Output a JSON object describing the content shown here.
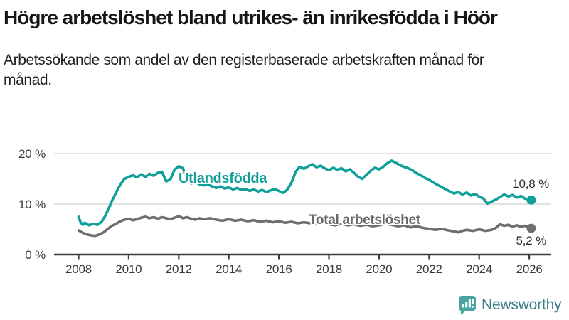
{
  "header": {
    "title": "Högre arbetslöshet bland utrikes- än inrikesfödda i Höör",
    "subtitle": "Arbetssökande som andel av den registerbaserade arbetskraften månad för månad."
  },
  "branding": {
    "name": "Newsworthy",
    "icon": "newsworthy-speech-bubble-bar-chart-icon",
    "icon_color": "#4aa5a2",
    "text_color": "#3b7e88"
  },
  "colors": {
    "background": "#ffffff",
    "title_text": "#161616",
    "axis_text": "#3a3a3a",
    "axis_line": "#3d3d3d",
    "gridline": "#d9d9d9",
    "series_foreign_born": "#10a099",
    "series_total": "#6e6e6e"
  },
  "chart_data": {
    "type": "line",
    "title": "Högre arbetslöshet bland utrikes- än inrikesfödda i Höör",
    "subtitle": "Arbetssökande som andel av den registerbaserade arbetskraften månad för månad.",
    "grid": "horizontal",
    "legend_position": "inline-curve-labels",
    "x_axis": {
      "ticks": [
        2008,
        2010,
        2012,
        2014,
        2016,
        2018,
        2020,
        2022,
        2024,
        2026
      ],
      "range": [
        2007.05,
        2026.95
      ],
      "unit": "year"
    },
    "y_axis": {
      "tick_values": [
        0,
        10,
        20
      ],
      "tick_labels": [
        "0 %",
        "10 %",
        "20 %"
      ],
      "range": [
        0,
        22.9
      ],
      "unit": "percent"
    },
    "series": [
      {
        "name": "Utlandsfödda",
        "label": "Utlandsfödda",
        "color": "#10a099",
        "end_label": "10,8 %",
        "end_value": 10.8,
        "points": [
          [
            2008.0,
            7.5
          ],
          [
            2008.08,
            6.4
          ],
          [
            2008.17,
            5.9
          ],
          [
            2008.25,
            6.3
          ],
          [
            2008.42,
            5.8
          ],
          [
            2008.58,
            6.1
          ],
          [
            2008.75,
            5.9
          ],
          [
            2008.92,
            6.5
          ],
          [
            2009.08,
            7.8
          ],
          [
            2009.17,
            8.8
          ],
          [
            2009.33,
            10.6
          ],
          [
            2009.5,
            12.3
          ],
          [
            2009.67,
            13.9
          ],
          [
            2009.83,
            15.0
          ],
          [
            2010.0,
            15.4
          ],
          [
            2010.17,
            15.7
          ],
          [
            2010.33,
            15.3
          ],
          [
            2010.5,
            15.9
          ],
          [
            2010.67,
            15.4
          ],
          [
            2010.83,
            16.0
          ],
          [
            2011.0,
            15.6
          ],
          [
            2011.17,
            16.2
          ],
          [
            2011.33,
            16.4
          ],
          [
            2011.5,
            14.5
          ],
          [
            2011.67,
            14.9
          ],
          [
            2011.83,
            16.8
          ],
          [
            2012.0,
            17.5
          ],
          [
            2012.17,
            17.1
          ],
          [
            2012.33,
            14.6
          ],
          [
            2012.5,
            14.1
          ],
          [
            2012.67,
            14.4
          ],
          [
            2012.83,
            13.9
          ],
          [
            2013.0,
            13.7
          ],
          [
            2013.17,
            13.9
          ],
          [
            2013.33,
            13.5
          ],
          [
            2013.5,
            13.2
          ],
          [
            2013.67,
            13.5
          ],
          [
            2013.83,
            13.1
          ],
          [
            2014.0,
            13.3
          ],
          [
            2014.17,
            12.9
          ],
          [
            2014.33,
            13.2
          ],
          [
            2014.5,
            12.8
          ],
          [
            2014.67,
            13.0
          ],
          [
            2014.83,
            12.6
          ],
          [
            2015.0,
            12.9
          ],
          [
            2015.17,
            12.5
          ],
          [
            2015.33,
            12.8
          ],
          [
            2015.5,
            12.4
          ],
          [
            2015.67,
            12.7
          ],
          [
            2015.83,
            13.0
          ],
          [
            2016.0,
            12.6
          ],
          [
            2016.17,
            12.2
          ],
          [
            2016.33,
            12.8
          ],
          [
            2016.5,
            14.2
          ],
          [
            2016.67,
            16.4
          ],
          [
            2016.83,
            17.4
          ],
          [
            2017.0,
            17.0
          ],
          [
            2017.17,
            17.5
          ],
          [
            2017.33,
            17.9
          ],
          [
            2017.5,
            17.3
          ],
          [
            2017.67,
            17.6
          ],
          [
            2017.83,
            17.1
          ],
          [
            2018.0,
            16.7
          ],
          [
            2018.17,
            17.2
          ],
          [
            2018.33,
            16.8
          ],
          [
            2018.5,
            17.1
          ],
          [
            2018.67,
            16.5
          ],
          [
            2018.83,
            16.9
          ],
          [
            2019.0,
            16.2
          ],
          [
            2019.17,
            15.4
          ],
          [
            2019.33,
            15.0
          ],
          [
            2019.5,
            15.8
          ],
          [
            2019.67,
            16.6
          ],
          [
            2019.83,
            17.2
          ],
          [
            2020.0,
            16.9
          ],
          [
            2020.17,
            17.4
          ],
          [
            2020.33,
            18.1
          ],
          [
            2020.5,
            18.6
          ],
          [
            2020.67,
            18.2
          ],
          [
            2020.83,
            17.7
          ],
          [
            2021.0,
            17.4
          ],
          [
            2021.17,
            17.1
          ],
          [
            2021.33,
            16.7
          ],
          [
            2021.5,
            16.1
          ],
          [
            2021.67,
            15.7
          ],
          [
            2021.83,
            15.2
          ],
          [
            2022.0,
            14.8
          ],
          [
            2022.17,
            14.3
          ],
          [
            2022.33,
            13.8
          ],
          [
            2022.5,
            13.4
          ],
          [
            2022.67,
            12.9
          ],
          [
            2022.83,
            12.5
          ],
          [
            2023.0,
            12.1
          ],
          [
            2023.17,
            12.4
          ],
          [
            2023.33,
            11.9
          ],
          [
            2023.5,
            12.3
          ],
          [
            2023.67,
            11.7
          ],
          [
            2023.83,
            12.0
          ],
          [
            2024.0,
            11.5
          ],
          [
            2024.17,
            11.1
          ],
          [
            2024.33,
            10.1
          ],
          [
            2024.5,
            10.5
          ],
          [
            2024.67,
            10.9
          ],
          [
            2024.83,
            11.4
          ],
          [
            2025.0,
            11.9
          ],
          [
            2025.17,
            11.5
          ],
          [
            2025.33,
            11.8
          ],
          [
            2025.5,
            11.3
          ],
          [
            2025.67,
            11.6
          ],
          [
            2025.83,
            11.1
          ],
          [
            2026.08,
            10.8
          ]
        ]
      },
      {
        "name": "Total arbetslöshet",
        "label": "Total arbetslöshet",
        "color": "#6e6e6e",
        "end_label": "5,2 %",
        "end_value": 5.2,
        "points": [
          [
            2008.0,
            4.8
          ],
          [
            2008.17,
            4.3
          ],
          [
            2008.33,
            4.0
          ],
          [
            2008.5,
            3.8
          ],
          [
            2008.67,
            3.7
          ],
          [
            2008.83,
            4.0
          ],
          [
            2009.0,
            4.4
          ],
          [
            2009.17,
            5.1
          ],
          [
            2009.33,
            5.7
          ],
          [
            2009.5,
            6.1
          ],
          [
            2009.67,
            6.6
          ],
          [
            2009.83,
            6.9
          ],
          [
            2010.0,
            7.1
          ],
          [
            2010.17,
            6.8
          ],
          [
            2010.33,
            7.0
          ],
          [
            2010.5,
            7.3
          ],
          [
            2010.67,
            7.5
          ],
          [
            2010.83,
            7.2
          ],
          [
            2011.0,
            7.4
          ],
          [
            2011.17,
            7.1
          ],
          [
            2011.33,
            7.4
          ],
          [
            2011.5,
            7.2
          ],
          [
            2011.67,
            7.0
          ],
          [
            2011.83,
            7.3
          ],
          [
            2012.0,
            7.6
          ],
          [
            2012.17,
            7.2
          ],
          [
            2012.33,
            7.4
          ],
          [
            2012.5,
            7.1
          ],
          [
            2012.67,
            6.9
          ],
          [
            2012.83,
            7.2
          ],
          [
            2013.0,
            7.0
          ],
          [
            2013.25,
            7.2
          ],
          [
            2013.5,
            6.9
          ],
          [
            2013.75,
            6.7
          ],
          [
            2014.0,
            7.0
          ],
          [
            2014.25,
            6.7
          ],
          [
            2014.5,
            6.9
          ],
          [
            2014.75,
            6.6
          ],
          [
            2015.0,
            6.8
          ],
          [
            2015.25,
            6.5
          ],
          [
            2015.5,
            6.7
          ],
          [
            2015.75,
            6.4
          ],
          [
            2016.0,
            6.6
          ],
          [
            2016.25,
            6.3
          ],
          [
            2016.5,
            6.5
          ],
          [
            2016.75,
            6.2
          ],
          [
            2017.0,
            6.4
          ],
          [
            2017.25,
            6.2
          ],
          [
            2017.5,
            6.0
          ],
          [
            2017.75,
            6.3
          ],
          [
            2018.0,
            6.0
          ],
          [
            2018.25,
            5.8
          ],
          [
            2018.5,
            6.1
          ],
          [
            2018.75,
            5.8
          ],
          [
            2019.0,
            6.0
          ],
          [
            2019.25,
            5.7
          ],
          [
            2019.5,
            5.9
          ],
          [
            2019.75,
            5.6
          ],
          [
            2020.0,
            5.8
          ],
          [
            2020.25,
            6.1
          ],
          [
            2020.5,
            5.9
          ],
          [
            2020.75,
            5.6
          ],
          [
            2021.0,
            5.8
          ],
          [
            2021.25,
            5.4
          ],
          [
            2021.5,
            5.6
          ],
          [
            2021.75,
            5.3
          ],
          [
            2022.0,
            5.1
          ],
          [
            2022.25,
            4.9
          ],
          [
            2022.5,
            5.1
          ],
          [
            2022.75,
            4.8
          ],
          [
            2023.0,
            4.6
          ],
          [
            2023.17,
            4.4
          ],
          [
            2023.33,
            4.7
          ],
          [
            2023.5,
            4.9
          ],
          [
            2023.75,
            4.7
          ],
          [
            2024.0,
            5.0
          ],
          [
            2024.25,
            4.7
          ],
          [
            2024.5,
            4.9
          ],
          [
            2024.67,
            5.3
          ],
          [
            2024.83,
            6.0
          ],
          [
            2025.0,
            5.7
          ],
          [
            2025.17,
            5.9
          ],
          [
            2025.33,
            5.5
          ],
          [
            2025.5,
            5.8
          ],
          [
            2025.67,
            5.5
          ],
          [
            2025.83,
            5.7
          ],
          [
            2026.08,
            5.2
          ]
        ]
      }
    ]
  }
}
